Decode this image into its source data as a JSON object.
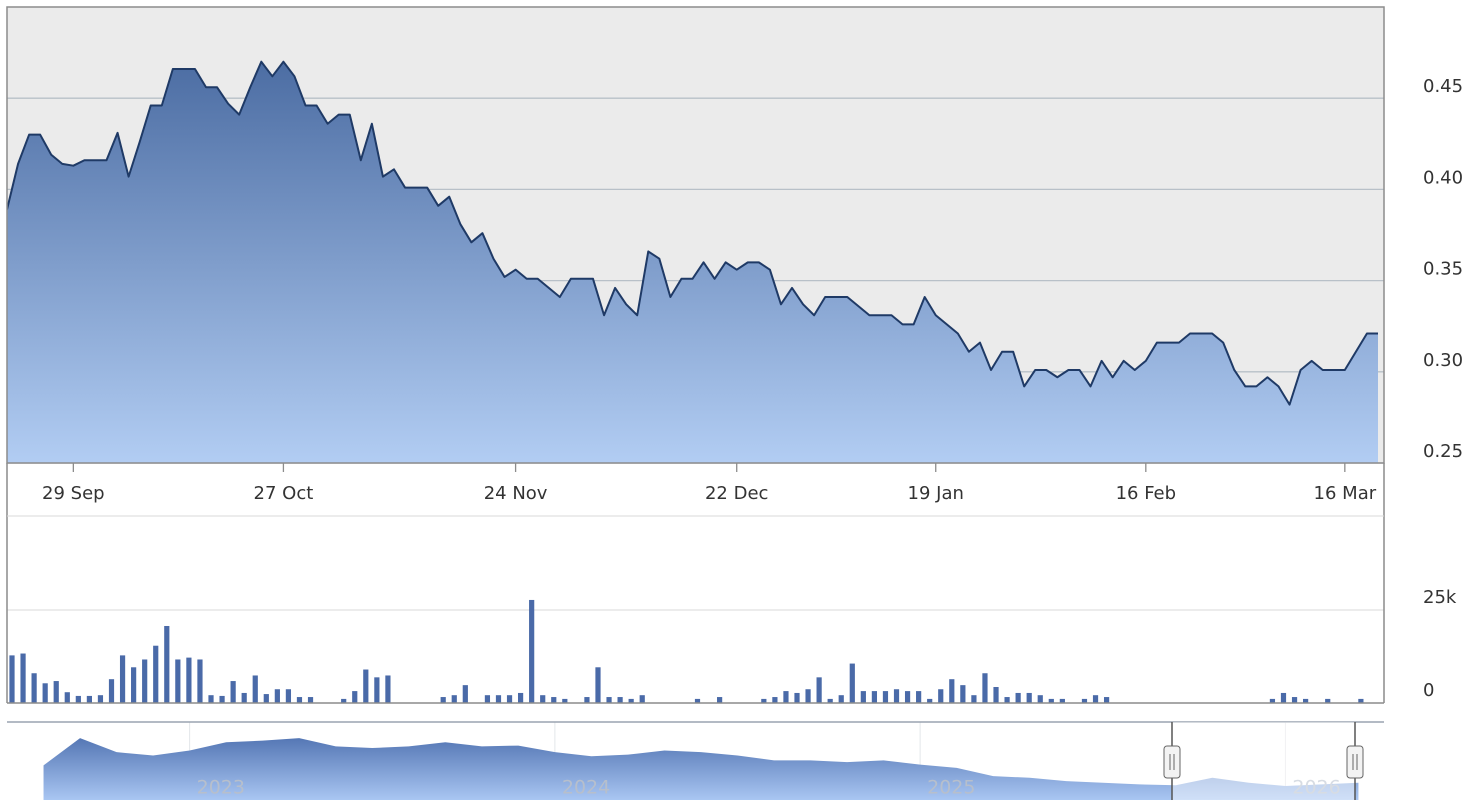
{
  "chart_data": [
    {
      "type": "area",
      "categories": [
        null,
        null,
        null,
        null,
        null,
        null,
        "29 Sep",
        null,
        null,
        null,
        null,
        null,
        null,
        null,
        null,
        null,
        null,
        null,
        null,
        null,
        null,
        null,
        null,
        null,
        null,
        "27 Oct",
        null,
        null,
        null,
        null,
        null,
        null,
        null,
        null,
        null,
        null,
        null,
        null,
        null,
        null,
        null,
        null,
        null,
        null,
        null,
        null,
        "24 Nov",
        null,
        null,
        null,
        null,
        null,
        null,
        null,
        null,
        null,
        null,
        null,
        null,
        null,
        null,
        null,
        null,
        null,
        null,
        null,
        "22 Dec",
        null,
        null,
        null,
        null,
        null,
        null,
        null,
        null,
        null,
        null,
        null,
        null,
        null,
        null,
        null,
        null,
        null,
        "19 Jan",
        null,
        null,
        null,
        null,
        null,
        null,
        null,
        null,
        null,
        null,
        null,
        null,
        null,
        null,
        null,
        null,
        null,
        null,
        "16 Feb",
        null,
        null,
        null,
        null,
        null,
        null,
        null,
        null,
        null,
        null,
        null,
        null,
        null,
        null,
        null,
        null,
        null,
        "16 Mar",
        null,
        null,
        null
      ],
      "values": [
        0.389,
        0.414,
        0.43,
        0.43,
        0.419,
        0.414,
        0.413,
        0.416,
        0.416,
        0.416,
        0.431,
        0.407,
        0.426,
        0.446,
        0.446,
        0.466,
        0.466,
        0.466,
        0.456,
        0.456,
        0.447,
        0.441,
        0.456,
        0.47,
        0.462,
        0.47,
        0.462,
        0.446,
        0.446,
        0.436,
        0.441,
        0.441,
        0.416,
        0.436,
        0.407,
        0.411,
        0.401,
        0.401,
        0.401,
        0.391,
        0.396,
        0.381,
        0.371,
        0.376,
        0.362,
        0.352,
        0.356,
        0.351,
        0.351,
        0.346,
        0.341,
        0.351,
        0.351,
        0.351,
        0.331,
        0.346,
        0.337,
        0.331,
        0.366,
        0.362,
        0.341,
        0.351,
        0.351,
        0.36,
        0.351,
        0.36,
        0.356,
        0.36,
        0.36,
        0.356,
        0.337,
        0.346,
        0.337,
        0.331,
        0.341,
        0.341,
        0.341,
        0.336,
        0.331,
        0.331,
        0.331,
        0.326,
        0.326,
        0.341,
        0.331,
        0.326,
        0.321,
        0.311,
        0.316,
        0.301,
        0.311,
        0.311,
        0.292,
        0.301,
        0.301,
        0.297,
        0.301,
        0.301,
        0.292,
        0.306,
        0.297,
        0.306,
        0.301,
        0.306,
        0.316,
        0.316,
        0.316,
        0.321,
        0.321,
        0.321,
        0.316,
        0.301,
        0.292,
        0.292,
        0.297,
        0.292,
        0.282,
        0.301,
        0.306,
        0.301,
        0.301,
        0.301,
        0.311,
        0.321,
        0.321
      ],
      "ylim": [
        0.25,
        0.5
      ],
      "yticks": [
        0.25,
        {
          "value": 0.3,
          "label": "0.30"
        },
        0.35,
        {
          "value": 0.4,
          "label": "0.40"
        },
        0.45
      ],
      "grid": true,
      "color": "#1f3a66"
    },
    {
      "type": "bar",
      "values": [
        12800,
        13300,
        8000,
        5300,
        5900,
        2900,
        1900,
        1900,
        2100,
        6400,
        12800,
        9600,
        11700,
        15400,
        20700,
        11700,
        12200,
        11700,
        2100,
        1900,
        5900,
        2700,
        7400,
        2400,
        3700,
        3700,
        1600,
        1600,
        0,
        0,
        1100,
        3200,
        9000,
        6900,
        7400,
        0,
        0,
        0,
        0,
        1600,
        2100,
        4800,
        0,
        2100,
        2100,
        2100,
        2700,
        27700,
        2100,
        1600,
        1100,
        0,
        1600,
        9600,
        1600,
        1600,
        1100,
        2100,
        0,
        0,
        0,
        0,
        1100,
        0,
        1600,
        0,
        0,
        0,
        1100,
        1600,
        3200,
        2700,
        3700,
        6900,
        1100,
        2100,
        10600,
        3200,
        3200,
        3200,
        3700,
        3200,
        3200,
        1100,
        3700,
        6400,
        4800,
        2100,
        8000,
        4300,
        1600,
        2700,
        2700,
        2100,
        1100,
        1100,
        0,
        1100,
        2100,
        1600,
        0,
        0,
        0,
        0,
        0,
        0,
        0,
        0,
        0,
        0,
        0,
        0,
        0,
        0,
        1100,
        2700,
        1600,
        1100,
        0,
        1100,
        0,
        0,
        1100,
        0,
        0
      ],
      "ylim": [
        0,
        50000
      ],
      "yticks": [
        0,
        {
          "value": 25000,
          "label": "25k"
        }
      ],
      "grid": true,
      "color": "#4a6aa8"
    },
    {
      "type": "area",
      "x": [
        2022.6,
        2022.7,
        2022.8,
        2022.9,
        2023.0,
        2023.1,
        2023.2,
        2023.3,
        2023.4,
        2023.5,
        2023.6,
        2023.7,
        2023.8,
        2023.9,
        2024.0,
        2024.1,
        2024.2,
        2024.3,
        2024.4,
        2024.5,
        2024.6,
        2024.7,
        2024.8,
        2024.9,
        2025.0,
        2025.1,
        2025.2,
        2025.3,
        2025.4,
        2025.5,
        2025.6,
        2025.7,
        2025.8,
        2025.9,
        2026.0,
        2026.1,
        2026.2
      ],
      "values": [
        0.54,
        0.87,
        0.7,
        0.66,
        0.72,
        0.82,
        0.84,
        0.87,
        0.77,
        0.75,
        0.77,
        0.82,
        0.77,
        0.78,
        0.7,
        0.65,
        0.67,
        0.72,
        0.7,
        0.66,
        0.6,
        0.6,
        0.58,
        0.6,
        0.55,
        0.51,
        0.41,
        0.39,
        0.35,
        0.33,
        0.31,
        0.3,
        0.39,
        0.33,
        0.29,
        0.31,
        0.33
      ],
      "xlim": [
        2022.5,
        2026.27
      ],
      "xticks": [
        2023,
        2024,
        2025,
        2026
      ],
      "ylim": [
        0,
        1.15
      ],
      "color": "#5b7fbf"
    }
  ]
}
